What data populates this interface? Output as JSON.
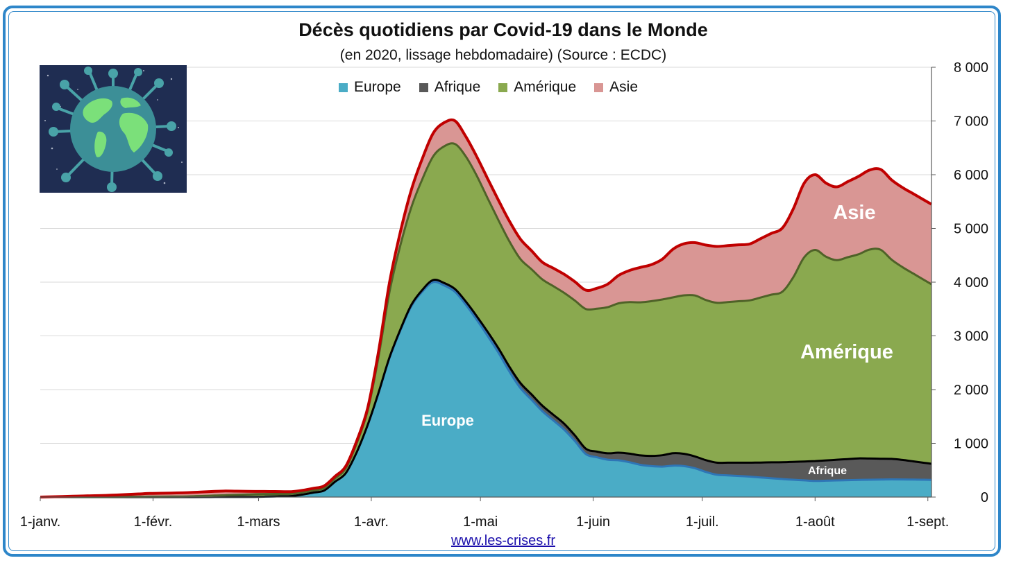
{
  "title": "Décès quotidiens par Covid-19 dans le Monde",
  "subtitle": "(en 2020, lissage hebdomadaire) (Source : ECDC)",
  "source_link": "www.les-crises.fr",
  "colors": {
    "europe": "#4aacc6",
    "afrique": "#595959",
    "amerique": "#8aa94f",
    "asie": "#d99694",
    "total_line": "#c00000",
    "frame": "#2e86c9"
  },
  "chart_data": {
    "type": "area",
    "stacked": true,
    "title": "Décès quotidiens par Covid-19 dans le Monde",
    "subtitle": "(en 2020, lissage hebdomadaire) (Source : ECDC)",
    "x_ticks": [
      "1-janv.",
      "1-févr.",
      "1-mars",
      "1-avr.",
      "1-mai",
      "1-juin",
      "1-juil.",
      "1-août",
      "1-sept."
    ],
    "x_tick_days": [
      0,
      31,
      60,
      91,
      121,
      152,
      182,
      213,
      244
    ],
    "x_range": [
      0,
      245
    ],
    "y_ticks": [
      "0",
      "1 000",
      "2 000",
      "3 000",
      "4 000",
      "5 000",
      "6 000",
      "7 000",
      "8 000"
    ],
    "ylim": [
      0,
      8000
    ],
    "y_axis_side": "right",
    "grid": true,
    "legend": [
      "Europe",
      "Afrique",
      "Amérique",
      "Asie"
    ],
    "legend_position": "top",
    "series": [
      {
        "name": "Europe",
        "points": [
          [
            0,
            0
          ],
          [
            40,
            0
          ],
          [
            60,
            5
          ],
          [
            70,
            20
          ],
          [
            78,
            120
          ],
          [
            85,
            500
          ],
          [
            91,
            1500
          ],
          [
            97,
            2800
          ],
          [
            103,
            3700
          ],
          [
            108,
            4000
          ],
          [
            113,
            3900
          ],
          [
            118,
            3500
          ],
          [
            125,
            2800
          ],
          [
            131,
            2100
          ],
          [
            138,
            1600
          ],
          [
            145,
            1200
          ],
          [
            150,
            800
          ],
          [
            155,
            700
          ],
          [
            160,
            680
          ],
          [
            165,
            600
          ],
          [
            170,
            560
          ],
          [
            175,
            590
          ],
          [
            179,
            560
          ],
          [
            185,
            420
          ],
          [
            195,
            380
          ],
          [
            205,
            330
          ],
          [
            213,
            300
          ],
          [
            225,
            320
          ],
          [
            235,
            330
          ],
          [
            245,
            320
          ]
        ]
      },
      {
        "name": "Afrique",
        "points": [
          [
            0,
            0
          ],
          [
            60,
            0
          ],
          [
            85,
            0
          ],
          [
            91,
            10
          ],
          [
            100,
            20
          ],
          [
            108,
            40
          ],
          [
            118,
            60
          ],
          [
            125,
            80
          ],
          [
            135,
            100
          ],
          [
            145,
            110
          ],
          [
            150,
            100
          ],
          [
            155,
            110
          ],
          [
            160,
            150
          ],
          [
            168,
            190
          ],
          [
            175,
            240
          ],
          [
            179,
            220
          ],
          [
            185,
            220
          ],
          [
            195,
            260
          ],
          [
            205,
            320
          ],
          [
            213,
            370
          ],
          [
            225,
            400
          ],
          [
            235,
            380
          ],
          [
            245,
            300
          ]
        ]
      },
      {
        "name": "Amérique",
        "points": [
          [
            0,
            0
          ],
          [
            40,
            10
          ],
          [
            60,
            50
          ],
          [
            70,
            40
          ],
          [
            75,
            40
          ],
          [
            80,
            50
          ],
          [
            85,
            100
          ],
          [
            91,
            300
          ],
          [
            97,
            1400
          ],
          [
            103,
            1900
          ],
          [
            108,
            2300
          ],
          [
            113,
            2700
          ],
          [
            118,
            2700
          ],
          [
            125,
            2400
          ],
          [
            131,
            2300
          ],
          [
            138,
            2350
          ],
          [
            145,
            2450
          ],
          [
            150,
            2600
          ],
          [
            155,
            2700
          ],
          [
            160,
            2800
          ],
          [
            165,
            2850
          ],
          [
            170,
            2900
          ],
          [
            175,
            2900
          ],
          [
            179,
            3000
          ],
          [
            185,
            2970
          ],
          [
            195,
            3020
          ],
          [
            205,
            3190
          ],
          [
            210,
            3800
          ],
          [
            213,
            3930
          ],
          [
            218,
            3700
          ],
          [
            225,
            3800
          ],
          [
            230,
            3950
          ],
          [
            235,
            3650
          ],
          [
            245,
            3340
          ]
        ]
      },
      {
        "name": "Asie",
        "points": [
          [
            0,
            0
          ],
          [
            20,
            30
          ],
          [
            30,
            60
          ],
          [
            40,
            70
          ],
          [
            50,
            80
          ],
          [
            60,
            50
          ],
          [
            70,
            40
          ],
          [
            80,
            40
          ],
          [
            85,
            40
          ],
          [
            91,
            50
          ],
          [
            97,
            200
          ],
          [
            103,
            350
          ],
          [
            108,
            430
          ],
          [
            113,
            450
          ],
          [
            118,
            350
          ],
          [
            125,
            370
          ],
          [
            131,
            380
          ],
          [
            138,
            320
          ],
          [
            145,
            350
          ],
          [
            150,
            350
          ],
          [
            155,
            400
          ],
          [
            160,
            550
          ],
          [
            165,
            650
          ],
          [
            170,
            700
          ],
          [
            175,
            950
          ],
          [
            179,
            970
          ],
          [
            185,
            1050
          ],
          [
            195,
            1050
          ],
          [
            205,
            1200
          ],
          [
            210,
            1380
          ],
          [
            213,
            1400
          ],
          [
            218,
            1350
          ],
          [
            225,
            1450
          ],
          [
            230,
            1500
          ],
          [
            235,
            1480
          ],
          [
            245,
            1490
          ]
        ]
      }
    ],
    "annotations": {
      "europe_label": "Europe",
      "afrique_label": "Afrique",
      "amerique_label": "Amérique",
      "asie_label": "Asie"
    }
  }
}
